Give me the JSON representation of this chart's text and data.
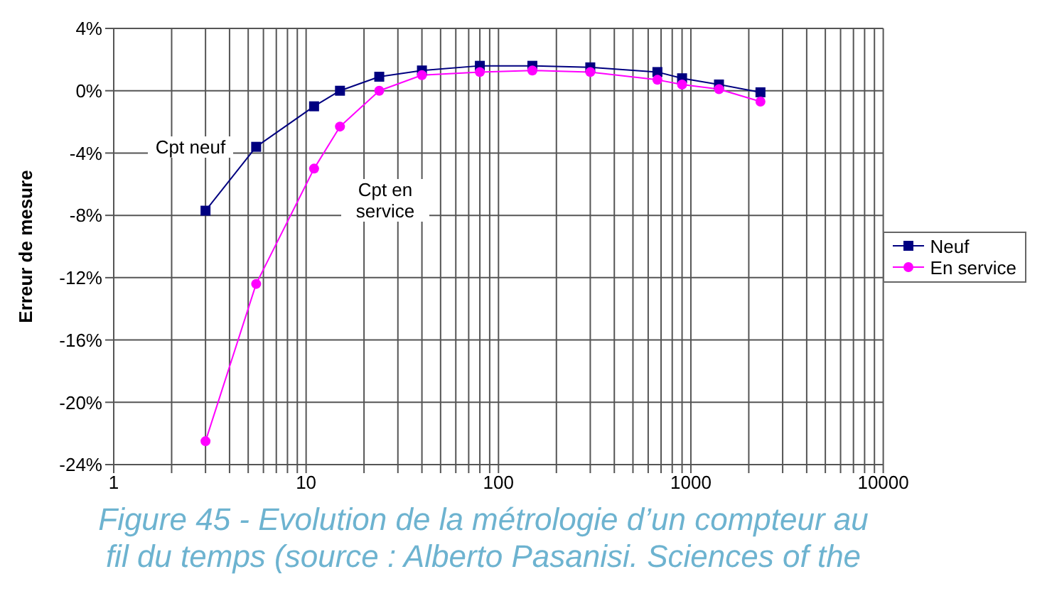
{
  "chart_data": {
    "type": "line",
    "ylabel": "Erreur de mesure",
    "x": [
      3,
      5.5,
      11,
      15,
      24,
      40,
      80,
      150,
      300,
      670,
      900,
      1400,
      2300
    ],
    "series": [
      {
        "name": "Neuf",
        "color": "#000080",
        "marker": "square",
        "values": [
          -7.7,
          -3.6,
          -1.0,
          0.0,
          0.9,
          1.3,
          1.6,
          1.6,
          1.5,
          1.2,
          0.8,
          0.4,
          -0.1
        ]
      },
      {
        "name": "En service",
        "color": "#ff00ff",
        "marker": "circle",
        "values": [
          -22.5,
          -12.4,
          -5.0,
          -2.3,
          0.0,
          1.0,
          1.2,
          1.3,
          1.2,
          0.7,
          0.4,
          0.1,
          -0.7
        ]
      }
    ],
    "log": "x",
    "xlim": [
      1,
      10000
    ],
    "xticks": [
      1,
      {
        "value": 2,
        "label": null
      },
      {
        "value": 3,
        "label": null
      },
      {
        "value": 4,
        "label": null
      },
      {
        "value": 5,
        "label": null
      },
      {
        "value": 6,
        "label": null
      },
      {
        "value": 7,
        "label": null
      },
      {
        "value": 8,
        "label": null
      },
      {
        "value": 9,
        "label": null
      },
      10,
      {
        "value": 20,
        "label": null
      },
      {
        "value": 30,
        "label": null
      },
      {
        "value": 40,
        "label": null
      },
      {
        "value": 50,
        "label": null
      },
      {
        "value": 60,
        "label": null
      },
      {
        "value": 70,
        "label": null
      },
      {
        "value": 80,
        "label": null
      },
      {
        "value": 90,
        "label": null
      },
      100,
      {
        "value": 200,
        "label": null
      },
      {
        "value": 300,
        "label": null
      },
      {
        "value": 400,
        "label": null
      },
      {
        "value": 500,
        "label": null
      },
      {
        "value": 600,
        "label": null
      },
      {
        "value": 700,
        "label": null
      },
      {
        "value": 800,
        "label": null
      },
      {
        "value": 900,
        "label": null
      },
      1000,
      {
        "value": 2000,
        "label": null
      },
      {
        "value": 3000,
        "label": null
      },
      {
        "value": 4000,
        "label": null
      },
      {
        "value": 5000,
        "label": null
      },
      {
        "value": 6000,
        "label": null
      },
      {
        "value": 7000,
        "label": null
      },
      {
        "value": 8000,
        "label": null
      },
      {
        "value": 9000,
        "label": null
      },
      10000
    ],
    "ylim": [
      -24,
      4
    ],
    "yticks": [
      {
        "value": -24,
        "label": "-24%"
      },
      {
        "value": -20,
        "label": "-20%"
      },
      {
        "value": -16,
        "label": "-16%"
      },
      {
        "value": -12,
        "label": "-12%"
      },
      {
        "value": -8,
        "label": "-8%"
      },
      {
        "value": -4,
        "label": "-4%"
      },
      {
        "value": 0,
        "label": "0%"
      },
      {
        "value": 4,
        "label": "4%"
      }
    ],
    "grid": true,
    "legend": "right",
    "line_style": "solid",
    "annotations": [
      "Cpt neuf",
      "Cpt en service",
      "Figure 45 - Evolution de la métrologie d’un compteur au",
      "fil du temps (source : Alberto Pasanisi. Sciences of the"
    ]
  }
}
